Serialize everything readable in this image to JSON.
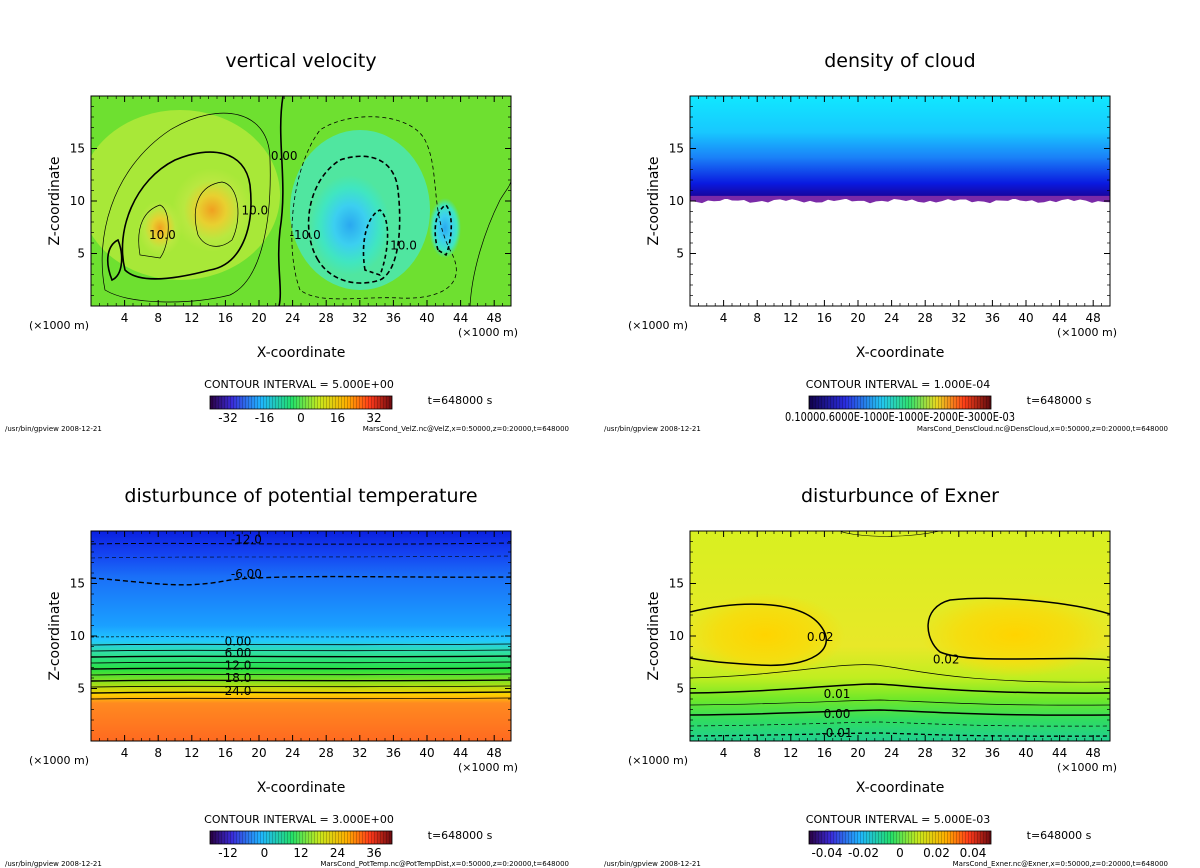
{
  "chart_data": [
    {
      "type": "heatmap",
      "title": "vertical velocity",
      "xlabel": "X-coordinate",
      "ylabel": "Z-coordinate",
      "x_unit_left": "(×1000 m)",
      "x_unit_right": "(×1000 m)",
      "xlim": [
        0,
        50
      ],
      "ylim": [
        0,
        20
      ],
      "x_ticks": [
        4,
        8,
        12,
        16,
        20,
        24,
        28,
        32,
        36,
        40,
        44,
        48
      ],
      "y_ticks": [
        5,
        10,
        15
      ],
      "contour_interval": "CONTOUR INTERVAL = 5.000E+00",
      "time": "t=648000 s",
      "colorbar_ticks": [
        "-32",
        "-16",
        "0",
        "16",
        "32"
      ],
      "contour_labels": [
        {
          "text": "0.00",
          "x": 23,
          "z": 14
        },
        {
          "text": "10.0",
          "x": 19.5,
          "z": 8.8
        },
        {
          "text": "10.0",
          "x": 8.5,
          "z": 6.5
        },
        {
          "text": "-10.0",
          "x": 25.5,
          "z": 6.5
        },
        {
          "text": "10.0",
          "x": 37.2,
          "z": 5.5
        }
      ],
      "footer_left": "/usr/bin/gpview  2008-12-21",
      "footer_right": "MarsCond_VelZ.nc@VelZ,x=0:50000,z=0:20000,t=648000"
    },
    {
      "type": "heatmap",
      "title": "density of cloud",
      "xlabel": "X-coordinate",
      "ylabel": "Z-coordinate",
      "x_unit_left": "(×1000 m)",
      "x_unit_right": "(×1000 m)",
      "xlim": [
        0,
        50
      ],
      "ylim": [
        0,
        20
      ],
      "x_ticks": [
        4,
        8,
        12,
        16,
        20,
        24,
        28,
        32,
        36,
        40,
        44,
        48
      ],
      "y_ticks": [
        5,
        10,
        15
      ],
      "cloud_base_z": 10.2,
      "contour_interval": "CONTOUR INTERVAL = 1.000E-04",
      "time": "t=648000 s",
      "colorbar_label": "0.10000.6000E-1000E-1000E-2000E-3000E-03",
      "footer_left": "/usr/bin/gpview  2008-12-21",
      "footer_right": "MarsCond_DensCloud.nc@DensCloud,x=0:50000,z=0:20000,t=648000"
    },
    {
      "type": "heatmap",
      "title": "disturbunce of potential temperature",
      "xlabel": "X-coordinate",
      "ylabel": "Z-coordinate",
      "x_unit_left": "(×1000 m)",
      "x_unit_right": "(×1000 m)",
      "xlim": [
        0,
        50
      ],
      "ylim": [
        0,
        20
      ],
      "x_ticks": [
        4,
        8,
        12,
        16,
        20,
        24,
        28,
        32,
        36,
        40,
        44,
        48
      ],
      "y_ticks": [
        5,
        10,
        15
      ],
      "contour_labels": [
        {
          "text": "-12.0",
          "x": 18.5,
          "z": 18.9
        },
        {
          "text": "-6.00",
          "x": 18.5,
          "z": 15.6
        },
        {
          "text": "0.00",
          "x": 17.5,
          "z": 9.2
        },
        {
          "text": "6.00",
          "x": 17.5,
          "z": 8.1
        },
        {
          "text": "12.0",
          "x": 17.5,
          "z": 6.9
        },
        {
          "text": "18.0",
          "x": 17.5,
          "z": 5.7
        },
        {
          "text": "24.0",
          "x": 17.5,
          "z": 4.5
        }
      ],
      "contour_interval": "CONTOUR INTERVAL = 3.000E+00",
      "time": "t=648000 s",
      "colorbar_ticks": [
        "-12",
        "0",
        "12",
        "24",
        "36"
      ],
      "footer_left": "/usr/bin/gpview  2008-12-21",
      "footer_right": "MarsCond_PotTemp.nc@PotTempDist,x=0:50000,z=0:20000,t=648000"
    },
    {
      "type": "heatmap",
      "title": "disturbunce of Exner",
      "xlabel": "X-coordinate",
      "ylabel": "Z-coordinate",
      "x_unit_left": "(×1000 m)",
      "x_unit_right": "(×1000 m)",
      "xlim": [
        0,
        50
      ],
      "ylim": [
        0,
        20
      ],
      "x_ticks": [
        4,
        8,
        12,
        16,
        20,
        24,
        28,
        32,
        36,
        40,
        44,
        48
      ],
      "y_ticks": [
        5,
        10,
        15
      ],
      "contour_labels": [
        {
          "text": "0.02",
          "x": 15.5,
          "z": 9.6
        },
        {
          "text": "0.02",
          "x": 30.5,
          "z": 7.5
        },
        {
          "text": "0.01",
          "x": 17.5,
          "z": 4.2
        },
        {
          "text": "0.00",
          "x": 17.5,
          "z": 2.3
        },
        {
          "text": "-0.01",
          "x": 17.5,
          "z": 0.5
        }
      ],
      "contour_interval": "CONTOUR INTERVAL = 5.000E-03",
      "time": "t=648000 s",
      "colorbar_ticks": [
        "-0.04",
        "-0.02",
        "0",
        "0.02",
        "0.04"
      ],
      "footer_left": "/usr/bin/gpview  2008-12-21",
      "footer_right": "MarsCond_Exner.nc@Exner,x=0:50000,z=0:20000,t=648000"
    }
  ]
}
